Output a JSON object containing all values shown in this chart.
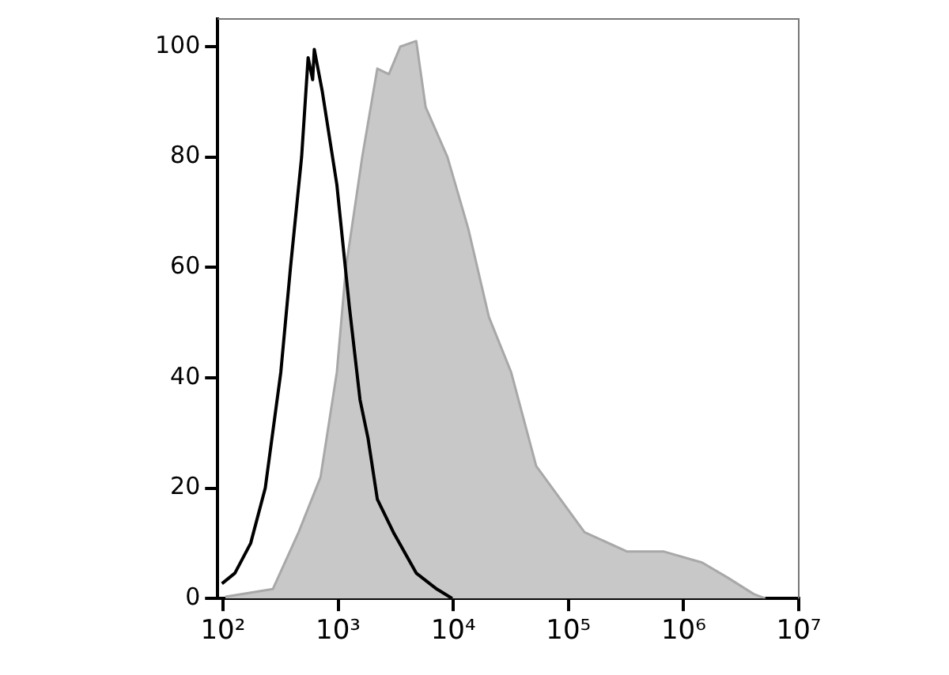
{
  "chart_data": {
    "type": "line",
    "log": "x",
    "grid": false,
    "legend": false,
    "marker": "none",
    "xlim": [
      90,
      10000000
    ],
    "xticks": [
      {
        "value": 100,
        "label": "10²"
      },
      {
        "value": 1000,
        "label": "10³"
      },
      {
        "value": 10000,
        "label": "10⁴"
      },
      {
        "value": 100000,
        "label": "10⁵"
      },
      {
        "value": 1000000,
        "label": "10⁶"
      },
      {
        "value": 10000000,
        "label": "10⁷"
      }
    ],
    "ylim": [
      0,
      105
    ],
    "yticks": [
      0,
      20,
      40,
      60,
      80,
      100
    ],
    "series": [
      {
        "type": "area",
        "color": "#a8a8a8",
        "x": [
          105,
          271,
          454,
          704,
          975,
          1170,
          1620,
          2190,
          2760,
          3470,
          4770,
          5760,
          8900,
          13500,
          20400,
          31800,
          52500,
          138000,
          324000,
          676000,
          1450000,
          2450000,
          4070000,
          5130000
        ],
        "values": [
          0.3,
          1.7,
          12,
          22,
          41,
          60,
          80,
          96,
          95,
          100,
          101,
          89,
          80,
          67,
          51,
          41,
          24,
          12,
          8.5,
          8.5,
          6.5,
          3.7,
          0.8,
          0
        ]
      },
      {
        "color": "#000000",
        "x": [
          98,
          127,
          174,
          233,
          318,
          386,
          482,
          549,
          601,
          621,
          727,
          975,
          1250,
          1550,
          1820,
          2190,
          3020,
          4770,
          7200,
          9800
        ],
        "values": [
          2.7,
          4.6,
          10,
          20,
          41,
          60,
          80,
          98,
          94,
          99.5,
          92,
          75,
          53,
          36,
          29,
          18,
          12,
          4.6,
          1.7,
          0
        ]
      }
    ]
  }
}
